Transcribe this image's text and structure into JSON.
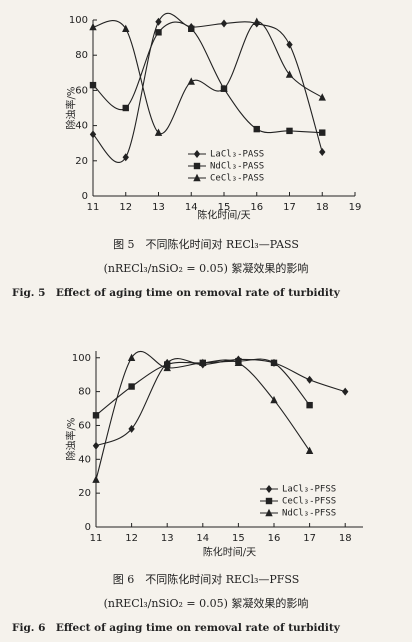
{
  "chart_data": [
    {
      "type": "line",
      "y_label": "除浊率/%",
      "x_label": "陈化时间/天",
      "caption_lines": [
        "图 5　不同陈化时间对 RECl₃—PASS",
        "(nRECl₃/nSiO₂ = 0.05) 絮凝效果的影响",
        "Fig. 5　Effect of aging time on removal rate of turbidity"
      ],
      "x": [
        11,
        12,
        13,
        14,
        15,
        16,
        17,
        18
      ],
      "xlim": [
        11,
        19
      ],
      "xticks": [
        11,
        12,
        13,
        14,
        15,
        16,
        17,
        18,
        19
      ],
      "ylim": [
        0,
        100
      ],
      "yticks": [
        0,
        20,
        40,
        60,
        80,
        100
      ],
      "series": [
        {
          "name": "LaCl₃-PASS",
          "color": "#222222",
          "marker": "diamond",
          "values": [
            35,
            22,
            99,
            96,
            98,
            98,
            86,
            25
          ]
        },
        {
          "name": "NdCl₃-PASS",
          "color": "#222222",
          "marker": "square",
          "values": [
            63,
            50,
            93,
            95,
            61,
            38,
            37,
            36
          ]
        },
        {
          "name": "CeCl₃-PASS",
          "color": "#222222",
          "marker": "triangle",
          "values": [
            96,
            95,
            36,
            65,
            61,
            99,
            69,
            56
          ]
        }
      ]
    },
    {
      "type": "line",
      "y_label": "除浊率/%",
      "x_label": "陈化时间/天",
      "caption_lines": [
        "图 6　不同陈化时间对 RECl₃—PFSS",
        "(nRECl₃/nSiO₂ = 0.05) 絮凝效果的影响",
        "Fig. 6　Effect of aging time on removal rate of turbidity"
      ],
      "x": [
        11,
        12,
        13,
        14,
        15,
        16,
        17,
        18
      ],
      "xlim": [
        11,
        18.5
      ],
      "xticks": [
        11,
        12,
        13,
        14,
        15,
        16,
        17,
        18
      ],
      "ylim": [
        0,
        104
      ],
      "yticks": [
        0,
        20,
        40,
        60,
        80,
        100
      ],
      "series": [
        {
          "name": "LaCl₃-PFSS",
          "color": "#222222",
          "marker": "diamond",
          "values": [
            48,
            58,
            97,
            96,
            99,
            97,
            87,
            80
          ]
        },
        {
          "name": "CeCl₃-PFSS",
          "color": "#222222",
          "marker": "square",
          "values": [
            66,
            83,
            96,
            97,
            98,
            97,
            72,
            null
          ]
        },
        {
          "name": "NdCl₃-PFSS",
          "color": "#222222",
          "marker": "triangle",
          "values": [
            28,
            100,
            94,
            97,
            97,
            75,
            45,
            null
          ]
        }
      ]
    }
  ]
}
